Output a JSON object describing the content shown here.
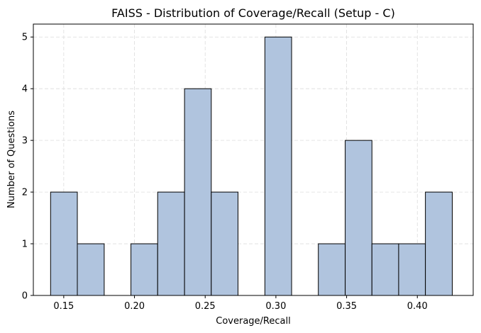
{
  "chart_data": {
    "type": "bar",
    "title": "FAISS - Distribution of Coverage/Recall (Setup - C)",
    "xlabel": "Coverage/Recall",
    "ylabel": "Number of Questions",
    "xlim": [
      0.1285,
      0.4395
    ],
    "ylim": [
      0,
      5.25
    ],
    "bin_edges": [
      0.1407,
      0.1596,
      0.1786,
      0.1975,
      0.2164,
      0.2354,
      0.2543,
      0.2732,
      0.2922,
      0.3111,
      0.33,
      0.349,
      0.3679,
      0.3868,
      0.4057,
      0.4247
    ],
    "values": [
      2,
      1,
      0,
      1,
      2,
      4,
      2,
      0,
      5,
      0,
      1,
      3,
      1,
      1,
      2
    ],
    "x_ticks": [
      0.15,
      0.2,
      0.25,
      0.3,
      0.35,
      0.4
    ],
    "x_tick_labels": [
      "0.15",
      "0.20",
      "0.25",
      "0.30",
      "0.35",
      "0.40"
    ],
    "y_ticks": [
      0,
      1,
      2,
      3,
      4,
      5
    ],
    "y_tick_labels": [
      "0",
      "1",
      "2",
      "3",
      "4",
      "5"
    ],
    "grid": true,
    "colors": {
      "bar_fill": "#b0c4de",
      "bar_edge": "#000000",
      "grid": "#dcdcdc"
    }
  }
}
